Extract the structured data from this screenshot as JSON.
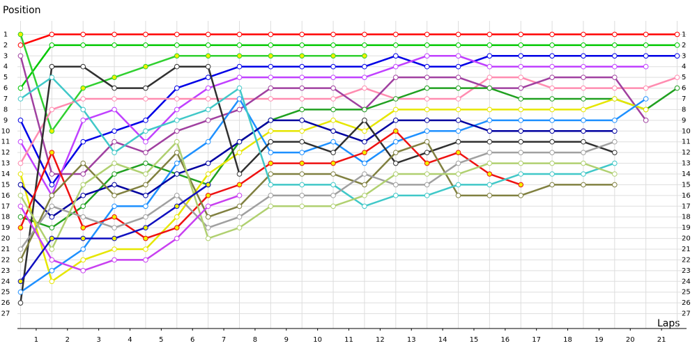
{
  "chart_data": {
    "type": "line",
    "y_label": "Position",
    "x_label": "Laps",
    "x": [
      0,
      1,
      2,
      3,
      4,
      5,
      6,
      7,
      8,
      9,
      10,
      11,
      12,
      13,
      14,
      15,
      16,
      17,
      18,
      19,
      20,
      21
    ],
    "xlim": [
      -0.1,
      21.3
    ],
    "xticks": [
      {
        "value": 0.5,
        "label": "1"
      },
      {
        "value": 1.5,
        "label": "2"
      },
      {
        "value": 2.5,
        "label": "3"
      },
      {
        "value": 3.5,
        "label": "4"
      },
      {
        "value": 4.5,
        "label": "5"
      },
      {
        "value": 5.5,
        "label": "6"
      },
      {
        "value": 6.5,
        "label": "7"
      },
      {
        "value": 7.5,
        "label": "8"
      },
      {
        "value": 8.5,
        "label": "9"
      },
      {
        "value": 9.5,
        "label": "10"
      },
      {
        "value": 10.5,
        "label": "11"
      },
      {
        "value": 11.5,
        "label": "12"
      },
      {
        "value": 12.5,
        "label": "13"
      },
      {
        "value": 13.5,
        "label": "14"
      },
      {
        "value": 14.5,
        "label": "15"
      },
      {
        "value": 15.5,
        "label": "16"
      },
      {
        "value": 16.5,
        "label": "17"
      },
      {
        "value": 17.5,
        "label": "18"
      },
      {
        "value": 18.5,
        "label": "19"
      },
      {
        "value": 19.5,
        "label": "20"
      },
      {
        "value": 20.5,
        "label": "21"
      }
    ],
    "ylim": [
      0,
      28
    ],
    "y_inverted": true,
    "yticks": [
      1,
      2,
      3,
      4,
      5,
      6,
      7,
      8,
      9,
      10,
      11,
      12,
      13,
      14,
      15,
      16,
      17,
      18,
      19,
      20,
      21,
      22,
      23,
      24,
      25,
      26,
      27
    ],
    "grid": true,
    "series": [
      {
        "color": "#ff0000",
        "marker_color": "#ffffff",
        "values": [
          2,
          1,
          1,
          1,
          1,
          1,
          1,
          1,
          1,
          1,
          1,
          1,
          1,
          1,
          1,
          1,
          1,
          1,
          1,
          1,
          1,
          1
        ]
      },
      {
        "color": "#00c800",
        "marker_color": "#ffffff",
        "values": [
          6,
          2,
          2,
          2,
          2,
          2,
          2,
          2,
          2,
          2,
          2,
          2,
          2,
          2,
          2,
          2,
          2,
          2,
          2,
          2,
          2,
          2
        ]
      },
      {
        "color": "#30d030",
        "marker_color": "#f0f000",
        "values": [
          1,
          10,
          6,
          5,
          4,
          3,
          3,
          3,
          3,
          3,
          3,
          3,
          null,
          null,
          null,
          null,
          null,
          null,
          null,
          null,
          null,
          null
        ]
      },
      {
        "color": "#0000e6",
        "marker_color": "#ffffff",
        "values": [
          9,
          15,
          11,
          10,
          9,
          6,
          5,
          4,
          4,
          4,
          4,
          4,
          3,
          4,
          4,
          3,
          3,
          3,
          3,
          3,
          3,
          3
        ]
      },
      {
        "color": "#c040ff",
        "marker_color": "#ffffff",
        "values": [
          11,
          16,
          9,
          8,
          11,
          8,
          6,
          5,
          5,
          5,
          5,
          5,
          4,
          3,
          3,
          4,
          4,
          4,
          4,
          4,
          4,
          null
        ]
      },
      {
        "color": "#ff8cb0",
        "marker_color": "#ffffff",
        "values": [
          13,
          8,
          7,
          7,
          7,
          7,
          7,
          7,
          7,
          7,
          7,
          6,
          7,
          7,
          7,
          5,
          5,
          6,
          6,
          6,
          6,
          5
        ]
      },
      {
        "color": "#a040a0",
        "marker_color": "#ffffff",
        "values": [
          3,
          14,
          14,
          11,
          12,
          10,
          9,
          8,
          6,
          6,
          6,
          8,
          5,
          5,
          5,
          6,
          6,
          5,
          5,
          5,
          9,
          null
        ]
      },
      {
        "color": "#20a020",
        "marker_color": "#ffffff",
        "values": [
          18,
          19,
          17,
          14,
          13,
          14,
          15,
          11,
          9,
          8,
          8,
          8,
          7,
          6,
          6,
          6,
          7,
          7,
          7,
          7,
          8,
          6
        ]
      },
      {
        "color": "#e6e600",
        "marker_color": "#ffffff",
        "values": [
          14,
          24,
          22,
          21,
          21,
          18,
          14,
          12,
          10,
          10,
          9,
          10,
          8,
          8,
          8,
          8,
          8,
          8,
          8,
          7,
          8,
          null
        ]
      },
      {
        "color": "#1e90ff",
        "marker_color": "#ffffff",
        "values": [
          25,
          23,
          21,
          17,
          17,
          13,
          11,
          7,
          12,
          12,
          11,
          13,
          11,
          10,
          10,
          9,
          9,
          9,
          9,
          9,
          7,
          null
        ]
      },
      {
        "color": "#0000a0",
        "marker_color": "#ffffff",
        "values": [
          15,
          18,
          16,
          15,
          16,
          14,
          13,
          11,
          9,
          9,
          10,
          11,
          9,
          9,
          9,
          10,
          10,
          10,
          10,
          10,
          null,
          null
        ]
      },
      {
        "color": "#303030",
        "marker_color": "#ffffff",
        "values": [
          26,
          4,
          4,
          6,
          6,
          4,
          4,
          14,
          11,
          11,
          12,
          9,
          13,
          12,
          11,
          11,
          11,
          11,
          11,
          12,
          null,
          null
        ]
      },
      {
        "color": "#ee1111",
        "marker_color": "#f0f000",
        "values": [
          19,
          12,
          19,
          18,
          20,
          19,
          16,
          15,
          13,
          13,
          13,
          12,
          10,
          13,
          12,
          14,
          15,
          null,
          null,
          null,
          null,
          null
        ]
      },
      {
        "color": "#808040",
        "marker_color": "#ffffff",
        "values": [
          22,
          16,
          13,
          16,
          15,
          12,
          18,
          17,
          14,
          14,
          14,
          15,
          12,
          11,
          16,
          16,
          16,
          15,
          15,
          15,
          null,
          null
        ]
      },
      {
        "color": "#40c8c8",
        "marker_color": "#ffffff",
        "values": [
          7,
          5,
          8,
          12,
          10,
          9,
          8,
          6,
          15,
          15,
          15,
          17,
          16,
          16,
          15,
          15,
          14,
          14,
          14,
          13,
          null,
          null
        ]
      },
      {
        "color": "#a0a0a0",
        "marker_color": "#ffffff",
        "values": [
          21,
          17,
          18,
          19,
          18,
          16,
          19,
          18,
          16,
          16,
          16,
          14,
          15,
          15,
          13,
          12,
          12,
          12,
          12,
          11,
          null,
          null
        ]
      },
      {
        "color": "#b0d070",
        "marker_color": "#ffffff",
        "values": [
          16,
          21,
          15,
          13,
          14,
          11,
          20,
          19,
          17,
          17,
          17,
          16,
          14,
          14,
          14,
          13,
          13,
          13,
          13,
          14,
          null,
          null
        ]
      },
      {
        "color": "#c840f0",
        "marker_color": "#ffffff",
        "values": [
          17,
          22,
          23,
          22,
          22,
          20,
          17,
          16,
          null,
          null,
          null,
          null,
          null,
          null,
          null,
          null,
          null,
          null,
          null,
          null,
          null,
          null
        ]
      },
      {
        "color": "#1010c0",
        "marker_color": "#f0f000",
        "values": [
          24,
          20,
          20,
          20,
          19,
          17,
          15,
          null,
          null,
          null,
          null,
          null,
          null,
          null,
          null,
          null,
          null,
          null,
          null,
          null,
          null,
          null
        ]
      }
    ]
  }
}
